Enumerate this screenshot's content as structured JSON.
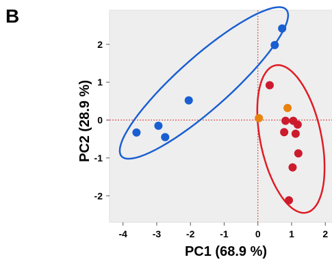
{
  "panel_label": "B",
  "chart_data": {
    "type": "scatter",
    "xlabel": "PC1 (68.9 %)",
    "ylabel": "PC2 (28.9 %)",
    "xlim": [
      -4.4,
      2.3
    ],
    "ylim": [
      -2.7,
      2.9
    ],
    "xticks": [
      -4,
      -3,
      -2,
      -1,
      0,
      1,
      2
    ],
    "yticks": [
      -2,
      -1,
      0,
      1,
      2
    ],
    "background": "#eeeeee",
    "grid": false,
    "reference_lines": {
      "x": 0,
      "y": 0,
      "color": "#e03030"
    },
    "series": [
      {
        "color": "#1a5fd1",
        "points": [
          {
            "x": -3.6,
            "y": -0.33
          },
          {
            "x": -2.95,
            "y": -0.15
          },
          {
            "x": -2.75,
            "y": -0.45
          },
          {
            "x": -2.05,
            "y": 0.52
          },
          {
            "x": 0.5,
            "y": 1.98
          },
          {
            "x": 0.72,
            "y": 2.42
          }
        ]
      },
      {
        "color": "#cc1b2d",
        "points": [
          {
            "x": 0.35,
            "y": 0.92
          },
          {
            "x": 0.82,
            "y": -0.02
          },
          {
            "x": 1.05,
            "y": -0.02
          },
          {
            "x": 1.18,
            "y": -0.12
          },
          {
            "x": 0.78,
            "y": -0.32
          },
          {
            "x": 1.12,
            "y": -0.36
          },
          {
            "x": 1.2,
            "y": -0.88
          },
          {
            "x": 1.03,
            "y": -1.25
          },
          {
            "x": 0.92,
            "y": -2.12
          }
        ]
      },
      {
        "color": "#e8830f",
        "points": [
          {
            "x": 0.03,
            "y": 0.05
          },
          {
            "x": 0.88,
            "y": 0.32
          }
        ]
      }
    ],
    "ellipses": [
      {
        "color": "#1a5fd1",
        "cx": -1.6,
        "cy": 0.98,
        "rx": 3.12,
        "ry": 0.72,
        "angle_deg": 38
      },
      {
        "color": "#e01b24",
        "cx": 0.98,
        "cy": -0.5,
        "rx": 2.0,
        "ry": 0.9,
        "angle_deg": -76
      }
    ]
  }
}
